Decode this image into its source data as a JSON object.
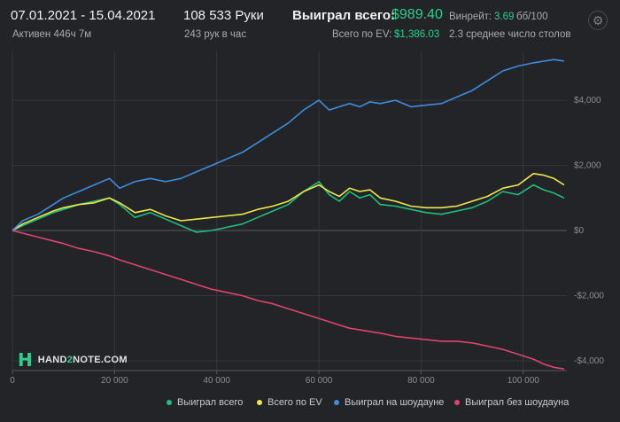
{
  "header": {
    "date_range": "07.01.2021 - 15.04.2021",
    "active": "Активен 446ч 7м",
    "hands": "108 533 Руки",
    "hands_per_hour": "243 рук в час",
    "won_label": "Выиграл всего:",
    "won_value": "$989.40",
    "ev_label": "Всего по EV:",
    "ev_value": "$1,386.03",
    "winrate_label": "Винрейт:",
    "winrate_value": "3.69",
    "winrate_unit": "бб/100",
    "tables": "2.3 среднее число столов"
  },
  "logo": {
    "prefix": "HAND",
    "two": "2",
    "suffix": "NOTE.COM",
    "mark": "H"
  },
  "chart_data": {
    "type": "line",
    "x_ticks": [
      0,
      20000,
      40000,
      60000,
      80000,
      100000
    ],
    "x_tick_labels": [
      "0",
      "20 000",
      "40 000",
      "60 000",
      "80 000",
      "100 000"
    ],
    "y_ticks": [
      -4000,
      -2000,
      0,
      2000,
      4000
    ],
    "y_tick_labels": [
      "-$4,000",
      "-$2,000",
      "$0",
      "$2,000",
      "$4,000"
    ],
    "xlim": [
      0,
      108533
    ],
    "ylim": [
      -4300,
      5500
    ],
    "grid": true,
    "legend_position": "bottom",
    "series": [
      {
        "name": "Выиграл всего",
        "color": "#1fbf7e",
        "x": [
          0,
          2000,
          5000,
          8000,
          10000,
          13000,
          16000,
          19000,
          21000,
          24000,
          27000,
          30000,
          33000,
          36000,
          39000,
          42000,
          45000,
          48000,
          51000,
          54000,
          57000,
          60000,
          62000,
          64000,
          66000,
          68000,
          70000,
          72000,
          75000,
          78000,
          81000,
          84000,
          87000,
          90000,
          93000,
          96000,
          99000,
          102000,
          104000,
          106000,
          108000
        ],
        "values": [
          0,
          150,
          350,
          550,
          650,
          800,
          900,
          1000,
          800,
          400,
          550,
          350,
          150,
          -50,
          0,
          100,
          200,
          400,
          600,
          800,
          1200,
          1500,
          1100,
          900,
          1200,
          1000,
          1100,
          800,
          750,
          650,
          550,
          500,
          600,
          700,
          900,
          1200,
          1100,
          1400,
          1250,
          1150,
          1000
        ]
      },
      {
        "name": "Всего по EV",
        "color": "#f0e74a",
        "x": [
          0,
          2000,
          5000,
          8000,
          10000,
          13000,
          16000,
          19000,
          21000,
          24000,
          27000,
          30000,
          33000,
          36000,
          39000,
          42000,
          45000,
          48000,
          51000,
          54000,
          57000,
          60000,
          62000,
          64000,
          66000,
          68000,
          70000,
          72000,
          75000,
          78000,
          81000,
          84000,
          87000,
          90000,
          93000,
          96000,
          99000,
          102000,
          104000,
          106000,
          108000
        ],
        "values": [
          0,
          200,
          400,
          600,
          700,
          800,
          850,
          1000,
          850,
          550,
          650,
          450,
          300,
          350,
          400,
          450,
          500,
          650,
          750,
          900,
          1200,
          1400,
          1200,
          1050,
          1300,
          1200,
          1250,
          1000,
          900,
          750,
          700,
          700,
          750,
          900,
          1050,
          1300,
          1400,
          1750,
          1700,
          1600,
          1400
        ]
      },
      {
        "name": "Выиграл на шоудауне",
        "color": "#3d8de0",
        "x": [
          0,
          2000,
          5000,
          8000,
          10000,
          13000,
          16000,
          19000,
          21000,
          24000,
          27000,
          30000,
          33000,
          36000,
          39000,
          42000,
          45000,
          48000,
          51000,
          54000,
          57000,
          60000,
          62000,
          64000,
          66000,
          68000,
          70000,
          72000,
          75000,
          78000,
          81000,
          84000,
          87000,
          90000,
          93000,
          96000,
          99000,
          102000,
          104000,
          106000,
          108000
        ],
        "values": [
          0,
          300,
          500,
          800,
          1000,
          1200,
          1400,
          1600,
          1300,
          1500,
          1600,
          1500,
          1600,
          1800,
          2000,
          2200,
          2400,
          2700,
          3000,
          3300,
          3700,
          4000,
          3700,
          3800,
          3900,
          3800,
          3950,
          3900,
          4000,
          3800,
          3850,
          3900,
          4100,
          4300,
          4600,
          4900,
          5050,
          5150,
          5200,
          5250,
          5200
        ]
      },
      {
        "name": "Выиграл без шоудауна",
        "color": "#e0446b",
        "x": [
          0,
          2000,
          5000,
          8000,
          10000,
          13000,
          16000,
          19000,
          21000,
          24000,
          27000,
          30000,
          33000,
          36000,
          39000,
          42000,
          45000,
          48000,
          51000,
          54000,
          57000,
          60000,
          62000,
          64000,
          66000,
          68000,
          70000,
          72000,
          75000,
          78000,
          81000,
          84000,
          87000,
          90000,
          93000,
          96000,
          99000,
          102000,
          104000,
          106000,
          108000
        ],
        "values": [
          0,
          -80,
          -200,
          -320,
          -400,
          -550,
          -650,
          -780,
          -900,
          -1050,
          -1200,
          -1350,
          -1500,
          -1650,
          -1800,
          -1900,
          -2000,
          -2150,
          -2250,
          -2400,
          -2550,
          -2700,
          -2800,
          -2900,
          -3000,
          -3050,
          -3100,
          -3150,
          -3250,
          -3300,
          -3350,
          -3400,
          -3400,
          -3450,
          -3550,
          -3650,
          -3800,
          -3950,
          -4100,
          -4200,
          -4250
        ]
      }
    ]
  },
  "colors": {
    "background": "#222427",
    "grid": "#34373b",
    "accent": "#2ecc8f"
  },
  "icons": {
    "settings": "gear-icon"
  }
}
